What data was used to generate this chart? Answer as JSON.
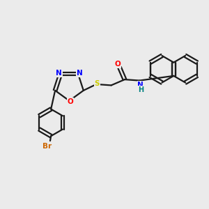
{
  "background_color": "#ebebeb",
  "bond_color": "#1a1a1a",
  "atom_colors": {
    "N": "#0000ff",
    "O": "#ff0000",
    "S": "#cccc00",
    "Br": "#cc6600",
    "NH": "#008080",
    "C": "#1a1a1a"
  },
  "figsize": [
    3.0,
    3.0
  ],
  "dpi": 100,
  "lw": 1.6,
  "fs": 7.5
}
